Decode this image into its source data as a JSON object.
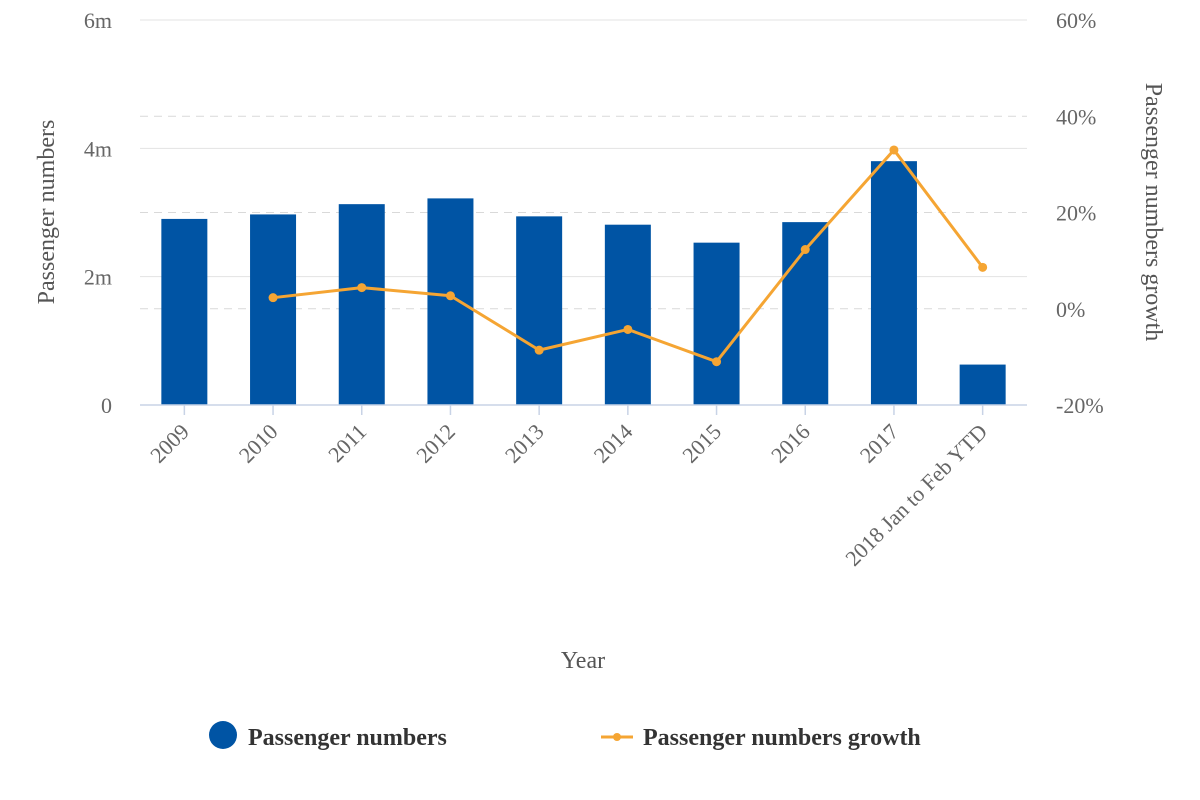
{
  "chart_data": {
    "type": "bar",
    "categories": [
      "2009",
      "2010",
      "2011",
      "2012",
      "2013",
      "2014",
      "2015",
      "2016",
      "2017",
      "2018 Jan to Feb YTD"
    ],
    "series": [
      {
        "name": "Passenger numbers",
        "type": "bar",
        "axis": "left",
        "color": "#0054a4",
        "values": [
          2900000,
          2970000,
          3130000,
          3220000,
          2940000,
          2810000,
          2530000,
          2850000,
          3800000,
          630000
        ]
      },
      {
        "name": "Passenger numbers growth",
        "type": "line",
        "axis": "right",
        "color": "#f5a533",
        "values": [
          null,
          2.3,
          4.4,
          2.7,
          -8.6,
          -4.3,
          -11.0,
          12.3,
          33.0,
          8.6
        ]
      }
    ],
    "xlabel": "Year",
    "ylabel": "Passenger numbers",
    "y2label": "Passenger numbers growth",
    "ylim": [
      0,
      6000000
    ],
    "y2lim": [
      -20,
      60
    ],
    "y_ticks": [
      {
        "value": 0,
        "label": "0"
      },
      {
        "value": 2000000,
        "label": "2m"
      },
      {
        "value": 4000000,
        "label": "4m"
      },
      {
        "value": 6000000,
        "label": "6m"
      }
    ],
    "y2_ticks": [
      {
        "value": -20,
        "label": "-20%"
      },
      {
        "value": 0,
        "label": "0%"
      },
      {
        "value": 20,
        "label": "20%"
      },
      {
        "value": 40,
        "label": "40%"
      },
      {
        "value": 60,
        "label": "60%"
      }
    ],
    "grid": true,
    "legend_position": "bottom"
  }
}
